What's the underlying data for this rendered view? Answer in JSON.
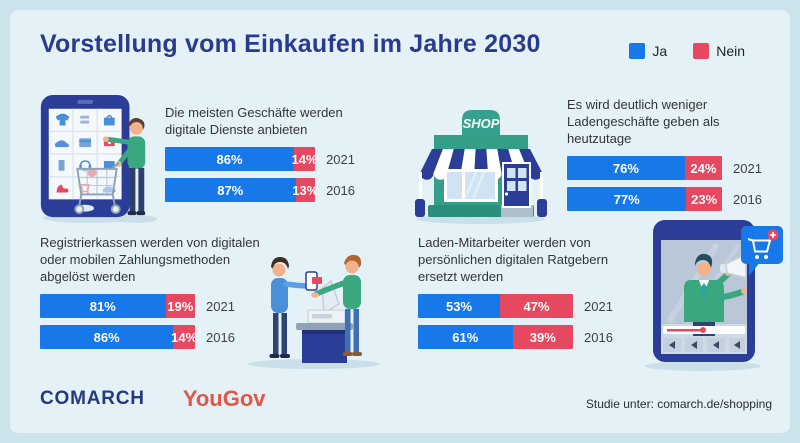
{
  "page": {
    "title": "Vorstellung vom Einkaufen im Jahre 2030",
    "legend": [
      {
        "label": "Ja",
        "color": "#1778ea"
      },
      {
        "label": "Nein",
        "color": "#e5485f"
      }
    ],
    "footer": {
      "brand_comarch": "COMARCH",
      "brand_yougov": "YouGov",
      "note": "Studie unter: comarch.de/shopping"
    },
    "colors": {
      "accent_blue": "#1778ea",
      "accent_red": "#e5485f",
      "title_navy": "#2a3b8f",
      "panel_background": "#e4f2f8",
      "outer_background": "#cde3ec"
    },
    "illustrations": {
      "top_left": "smartphone-shopping-grid-with-cart",
      "top_right": "shop-storefront-with-awning",
      "bottom_left": "cash-register-mobile-payment",
      "bottom_right": "smartphone-video-advisor-megaphone",
      "shop_sign_text": "SHOP"
    }
  },
  "chart_data": [
    {
      "type": "bar",
      "stacked": true,
      "orientation": "horizontal",
      "title": "Die meisten Geschäfte werden\ndigitale Dienste anbieten",
      "categories": [
        "2021",
        "2016"
      ],
      "unit": "%",
      "xlim": [
        0,
        100
      ],
      "series": [
        {
          "name": "Ja",
          "color": "#1778ea",
          "values": [
            86,
            87
          ]
        },
        {
          "name": "Nein",
          "color": "#e5485f",
          "values": [
            14,
            13
          ]
        }
      ]
    },
    {
      "type": "bar",
      "stacked": true,
      "orientation": "horizontal",
      "title": "Es wird deutlich weniger\nLadengeschäfte geben als\nheutzutage",
      "categories": [
        "2021",
        "2016"
      ],
      "unit": "%",
      "xlim": [
        0,
        100
      ],
      "series": [
        {
          "name": "Ja",
          "color": "#1778ea",
          "values": [
            76,
            77
          ]
        },
        {
          "name": "Nein",
          "color": "#e5485f",
          "values": [
            24,
            23
          ]
        }
      ]
    },
    {
      "type": "bar",
      "stacked": true,
      "orientation": "horizontal",
      "title": "Registrierkassen werden von digitalen\noder mobilen Zahlungsmethoden\nabgelöst werden",
      "categories": [
        "2021",
        "2016"
      ],
      "unit": "%",
      "xlim": [
        0,
        100
      ],
      "series": [
        {
          "name": "Ja",
          "color": "#1778ea",
          "values": [
            81,
            86
          ]
        },
        {
          "name": "Nein",
          "color": "#e5485f",
          "values": [
            19,
            14
          ]
        }
      ]
    },
    {
      "type": "bar",
      "stacked": true,
      "orientation": "horizontal",
      "title": "Laden-Mitarbeiter werden von\npersönlichen digitalen Ratgebern\nersetzt werden",
      "categories": [
        "2021",
        "2016"
      ],
      "unit": "%",
      "xlim": [
        0,
        100
      ],
      "series": [
        {
          "name": "Ja",
          "color": "#1778ea",
          "values": [
            53,
            61
          ]
        },
        {
          "name": "Nein",
          "color": "#e5485f",
          "values": [
            47,
            39
          ]
        }
      ]
    }
  ]
}
